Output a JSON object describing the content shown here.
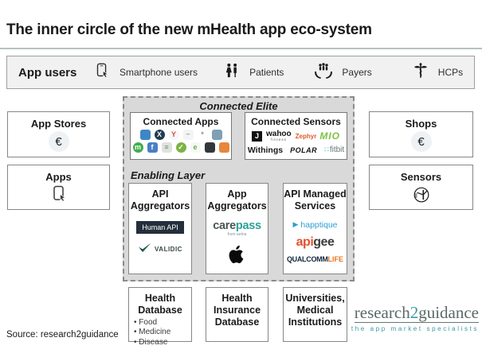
{
  "title": "The inner circle of the new mHealth app eco-system",
  "app_users": {
    "label": "App users",
    "items": [
      {
        "icon": "smartphone-touch-icon",
        "label": "Smartphone users"
      },
      {
        "icon": "patients-icon",
        "label": "Patients"
      },
      {
        "icon": "payers-hands-icon",
        "label": "Payers"
      },
      {
        "icon": "caduceus-icon",
        "label": "HCPs"
      }
    ]
  },
  "side_boxes": {
    "app_stores": {
      "title": "App Stores",
      "symbol": "€"
    },
    "apps": {
      "title": "Apps",
      "icon": "smartphone-touch-icon"
    },
    "shops": {
      "title": "Shops",
      "symbol": "€"
    },
    "sensors": {
      "title": "Sensors",
      "icon": "sensor-schematic-icon"
    }
  },
  "connected_elite": {
    "label": "Connected Elite",
    "connected_apps": {
      "title": "Connected Apps",
      "icons": {
        "row1": [
          {
            "color": "#3e86c8",
            "shape": "square",
            "glyph": "",
            "glyph_color": "#ffffff"
          },
          {
            "color": "#243a52",
            "shape": "circle",
            "glyph": "X",
            "glyph_color": "#ffffff"
          },
          {
            "color": "#f6f7f7",
            "shape": "circle",
            "glyph": "Y",
            "glyph_color": "#d64f3e"
          },
          {
            "color": "#f2f4f5",
            "shape": "square",
            "glyph": "~",
            "glyph_color": "#9aa4a8"
          },
          {
            "color": "#ffffff",
            "shape": "square",
            "glyph": "*",
            "glyph_color": "#8a9096"
          },
          {
            "color": "#7f9fb7",
            "shape": "square",
            "glyph": "",
            "glyph_color": "#ffffff"
          }
        ],
        "row2": [
          {
            "color": "#3fae4c",
            "shape": "circle",
            "glyph": "m",
            "glyph_color": "#ffffff"
          },
          {
            "color": "#4a7fc4",
            "shape": "square",
            "glyph": "f",
            "glyph_color": "#ffffff"
          },
          {
            "color": "#dfe3df",
            "shape": "square",
            "glyph": "≡",
            "glyph_color": "#6b8f6b"
          },
          {
            "color": "#7cb342",
            "shape": "circle",
            "glyph": "✓",
            "glyph_color": "#ffffff"
          },
          {
            "color": "#f6f8f6",
            "shape": "square",
            "glyph": "e",
            "glyph_color": "#62b440"
          },
          {
            "color": "#34373a",
            "shape": "square",
            "glyph": "",
            "glyph_color": "#7bc043"
          },
          {
            "color": "#e8863c",
            "shape": "square",
            "glyph": "",
            "glyph_color": "#ffffff"
          }
        ]
      }
    },
    "connected_sensors": {
      "title": "Connected Sensors",
      "brands": {
        "jawbone": "J",
        "wahoo": "wahoo",
        "wahoo_sub": "fitness",
        "zephyr": "Zephyr",
        "mio": "MIO",
        "withings": "Withings",
        "polar": "POLAR",
        "fitbit": "fitbit",
        "fitbit_dots": "∷"
      }
    }
  },
  "enabling_layer": {
    "label": "Enabling Layer",
    "boxes": [
      {
        "title": "API Aggregators",
        "logos": {
          "human_api": "Human API",
          "validic": "VALIDIC"
        }
      },
      {
        "title": "App Aggregators",
        "logos": {
          "carepass_1": "care",
          "carepass_2": "pass",
          "carepass_sub": "from aetna",
          "apple": "apple-logo-icon"
        }
      },
      {
        "title": "API Managed Services",
        "logos": {
          "happtique": "happtique",
          "apigee_1": "api",
          "apigee_2": "gee",
          "qualcomm_1": "QUALCOMM",
          "qualcomm_2": "LIFE"
        }
      }
    ]
  },
  "bottom_row": [
    {
      "title": "Health Database",
      "bullets": [
        "Food",
        "Medicine",
        "Disease"
      ]
    },
    {
      "title": "Health Insurance Database",
      "bullets": []
    },
    {
      "title": "Universities, Medical Institutions",
      "bullets": []
    }
  ],
  "footer": {
    "source": "Source: research2guidance",
    "logo": {
      "part1": "research",
      "part2": "2",
      "part3": "guidance",
      "tagline": "the app market specialists"
    }
  },
  "colors": {
    "accent_teal": "#2aa198",
    "logo_teal": "#3a97a8",
    "apigee_orange": "#e2532e",
    "qualcomm_navy": "#15283c",
    "qualcomm_orange": "#e87722",
    "happtique_blue": "#2e9fd4",
    "zephyr_orange": "#e05a2b",
    "mio_green": "#7dc242",
    "fitbit_gray": "#66757a",
    "fitbit_teal": "#00b0b9",
    "humanapi_navy": "#242f3b",
    "dashed_bg": "#d9d9d9",
    "bar_bg": "#f1f1f1"
  }
}
